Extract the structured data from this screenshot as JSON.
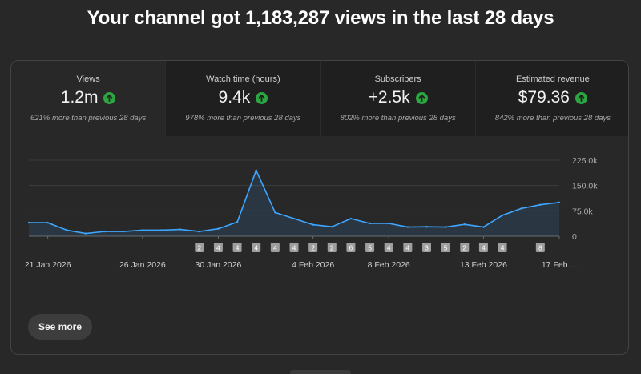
{
  "headline": "Your channel got 1,183,287 views in the last 28 days",
  "metrics": [
    {
      "label": "Views",
      "value": "1.2m",
      "compare": "621% more than previous 28 days",
      "active": true
    },
    {
      "label": "Watch time (hours)",
      "value": "9.4k",
      "compare": "978% more than previous 28 days",
      "active": false
    },
    {
      "label": "Subscribers",
      "value": "+2.5k",
      "compare": "802% more than previous 28 days",
      "active": false
    },
    {
      "label": "Estimated revenue",
      "value": "$79.36",
      "compare": "842% more than previous 28 days",
      "active": false
    }
  ],
  "colors": {
    "line": "#3ea6ff",
    "up": "#2ba640",
    "marker": "#a8a8a8"
  },
  "chart_data": {
    "type": "area",
    "x": [
      "20 Jan 2026",
      "21 Jan 2026",
      "22 Jan 2026",
      "23 Jan 2026",
      "24 Jan 2026",
      "25 Jan 2026",
      "26 Jan 2026",
      "27 Jan 2026",
      "28 Jan 2026",
      "29 Jan 2026",
      "30 Jan 2026",
      "31 Jan 2026",
      "1 Feb 2026",
      "2 Feb 2026",
      "3 Feb 2026",
      "4 Feb 2026",
      "5 Feb 2026",
      "6 Feb 2026",
      "7 Feb 2026",
      "8 Feb 2026",
      "9 Feb 2026",
      "10 Feb 2026",
      "11 Feb 2026",
      "12 Feb 2026",
      "13 Feb 2026",
      "14 Feb 2026",
      "15 Feb 2026",
      "16 Feb 2026",
      "17 Feb 2026"
    ],
    "y": [
      40000,
      40000,
      18000,
      8000,
      14000,
      14000,
      18000,
      18000,
      20000,
      14000,
      22000,
      42000,
      195000,
      70000,
      52000,
      34000,
      28000,
      52000,
      38000,
      38000,
      27000,
      28000,
      27000,
      35000,
      27000,
      62000,
      82000,
      93000,
      100000
    ],
    "ylim": [
      0,
      225000
    ],
    "y_ticks": [
      "225.0k",
      "150.0k",
      "75.0k",
      "0"
    ],
    "x_tick_labels": [
      {
        "index": 1,
        "label": "21 Jan 2026"
      },
      {
        "index": 6,
        "label": "26 Jan 2026"
      },
      {
        "index": 10,
        "label": "30 Jan 2026"
      },
      {
        "index": 15,
        "label": "4 Feb 2026"
      },
      {
        "index": 19,
        "label": "8 Feb 2026"
      },
      {
        "index": 24,
        "label": "13 Feb 2026"
      },
      {
        "index": 28,
        "label": "17 Feb ..."
      }
    ],
    "markers": [
      {
        "index": 9,
        "label": "2"
      },
      {
        "index": 10,
        "label": "4"
      },
      {
        "index": 11,
        "label": "4"
      },
      {
        "index": 12,
        "label": "4"
      },
      {
        "index": 13,
        "label": "4"
      },
      {
        "index": 14,
        "label": "4"
      },
      {
        "index": 15,
        "label": "2"
      },
      {
        "index": 16,
        "label": "2"
      },
      {
        "index": 17,
        "label": "6"
      },
      {
        "index": 18,
        "label": "5"
      },
      {
        "index": 19,
        "label": "4"
      },
      {
        "index": 20,
        "label": "4"
      },
      {
        "index": 21,
        "label": "3"
      },
      {
        "index": 22,
        "label": "5"
      },
      {
        "index": 23,
        "label": "2"
      },
      {
        "index": 24,
        "label": "4"
      },
      {
        "index": 25,
        "label": "4"
      },
      {
        "index": 27,
        "label": "8"
      }
    ],
    "grid": true
  },
  "see_more_label": "See more"
}
